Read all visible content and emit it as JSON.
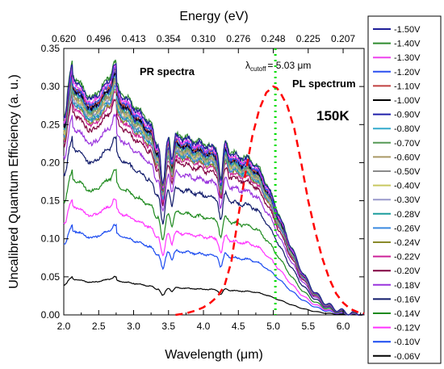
{
  "chart_data": {
    "type": "line",
    "xlabel": "Wavelength (μm)",
    "ylabel": "Uncalibred Quantum Efficiency (a. u.)",
    "top_axis_label": "Energy (eV)",
    "xlim": [
      2.0,
      6.3
    ],
    "ylim": [
      0.0,
      0.35
    ],
    "x_ticks": [
      "2.0",
      "2.5",
      "3.0",
      "3.5",
      "4.0",
      "4.5",
      "5.0",
      "5.5",
      "6.0"
    ],
    "y_ticks": [
      "0.00",
      "0.05",
      "0.10",
      "0.15",
      "0.20",
      "0.25",
      "0.30",
      "0.35"
    ],
    "top_ticks": [
      "0.620",
      "0.496",
      "0.413",
      "0.354",
      "0.310",
      "0.276",
      "0.248",
      "0.225",
      "0.207"
    ],
    "grid": false,
    "legend_placement": "right",
    "annotations": {
      "pr_label": "PR spectra",
      "pl_label": "PL spectrum",
      "temp_label": "150K",
      "cutoff_symbol": "λ",
      "cutoff_sub": "cutoff",
      "cutoff_value": "= 5.03 μm"
    },
    "cutoff_wavelength": 5.03,
    "series": [
      {
        "name": "-1.50V",
        "color": "#1f1f99",
        "peak": 0.33
      },
      {
        "name": "-1.40V",
        "color": "#2e8b2e",
        "peak": 0.333
      },
      {
        "name": "-1.30V",
        "color": "#ee44ee",
        "peak": 0.325
      },
      {
        "name": "-1.20V",
        "color": "#2a4ff0",
        "peak": 0.322
      },
      {
        "name": "-1.10V",
        "color": "#c04040",
        "peak": 0.32
      },
      {
        "name": "-1.00V",
        "color": "#000000",
        "peak": 0.317
      },
      {
        "name": "-0.90V",
        "color": "#2020aa",
        "peak": 0.315
      },
      {
        "name": "-0.80V",
        "color": "#33aacc",
        "peak": 0.313
      },
      {
        "name": "-0.70V",
        "color": "#559955",
        "peak": 0.311
      },
      {
        "name": "-0.60V",
        "color": "#aa9966",
        "peak": 0.309
      },
      {
        "name": "-0.50V",
        "color": "#8a8a8a",
        "peak": 0.307
      },
      {
        "name": "-0.40V",
        "color": "#c8c860",
        "peak": 0.305
      },
      {
        "name": "-0.30V",
        "color": "#9999cc",
        "peak": 0.303
      },
      {
        "name": "-0.28V",
        "color": "#1a9c9c",
        "peak": 0.301
      },
      {
        "name": "-0.26V",
        "color": "#3a8ae0",
        "peak": 0.298
      },
      {
        "name": "-0.24V",
        "color": "#8a8a2a",
        "peak": 0.295
      },
      {
        "name": "-0.22V",
        "color": "#cc2299",
        "peak": 0.291
      },
      {
        "name": "-0.20V",
        "color": "#800040",
        "peak": 0.282
      },
      {
        "name": "-0.18V",
        "color": "#9933dd",
        "peak": 0.262
      },
      {
        "name": "-0.16V",
        "color": "#101a6a",
        "peak": 0.233
      },
      {
        "name": "-0.14V",
        "color": "#1e8a1e",
        "peak": 0.19
      },
      {
        "name": "-0.12V",
        "color": "#ff33ff",
        "peak": 0.152
      },
      {
        "name": "-0.10V",
        "color": "#1a4af0",
        "peak": 0.118
      },
      {
        "name": "-0.06V",
        "color": "#000000",
        "peak": 0.05
      }
    ],
    "pl_spectrum": {
      "name": "PL spectrum",
      "color": "#ff0000",
      "x": [
        3.6,
        3.75,
        3.9,
        4.0,
        4.1,
        4.2,
        4.3,
        4.4,
        4.5,
        4.6,
        4.7,
        4.8,
        4.9,
        5.0,
        5.05,
        5.1,
        5.2,
        5.3,
        5.4,
        5.5,
        5.6,
        5.7,
        5.8,
        5.9,
        6.0,
        6.1,
        6.2,
        6.3
      ],
      "y": [
        0.0,
        0.002,
        0.006,
        0.01,
        0.016,
        0.024,
        0.038,
        0.07,
        0.13,
        0.185,
        0.235,
        0.27,
        0.292,
        0.3,
        0.298,
        0.292,
        0.275,
        0.245,
        0.2,
        0.15,
        0.11,
        0.075,
        0.048,
        0.028,
        0.016,
        0.008,
        0.004,
        0.002
      ]
    }
  }
}
